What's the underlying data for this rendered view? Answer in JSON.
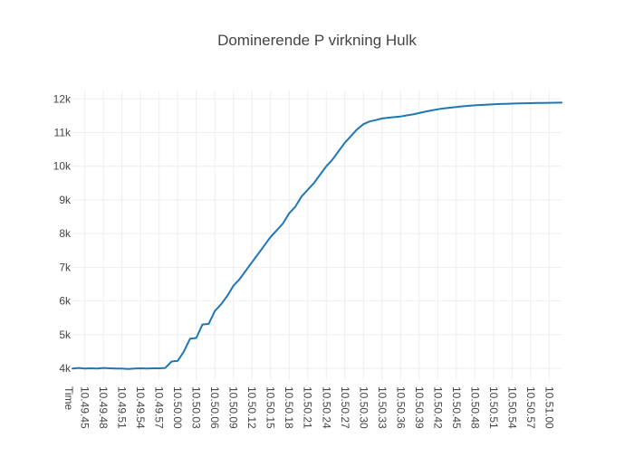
{
  "chart_data": {
    "type": "line",
    "title": "Dominerende P virkning Hulk",
    "xlabel": "Time",
    "ylabel": "",
    "grid": true,
    "legend": "none",
    "xlim": [
      "10.49.43",
      "10.51.02"
    ],
    "ylim": [
      3650,
      12250
    ],
    "x_ticks": [
      "10.49.45",
      "10.49.48",
      "10.49.51",
      "10.49.54",
      "10.49.57",
      "10.50.00",
      "10.50.03",
      "10.50.06",
      "10.50.09",
      "10.50.12",
      "10.50.15",
      "10.50.18",
      "10.50.21",
      "10.50.24",
      "10.50.27",
      "10.50.30",
      "10.50.33",
      "10.50.36",
      "10.50.39",
      "10.50.42",
      "10.50.45",
      "10.50.48",
      "10.50.51",
      "10.50.54",
      "10.50.57",
      "10.51.00"
    ],
    "y_ticks": [
      {
        "value": 4000,
        "label": "4k"
      },
      {
        "value": 5000,
        "label": "5k"
      },
      {
        "value": 6000,
        "label": "6k"
      },
      {
        "value": 7000,
        "label": "7k"
      },
      {
        "value": 8000,
        "label": "8k"
      },
      {
        "value": 9000,
        "label": "9k"
      },
      {
        "value": 10000,
        "label": "10k"
      },
      {
        "value": 11000,
        "label": "11k"
      },
      {
        "value": 12000,
        "label": "12k"
      }
    ],
    "series": [
      {
        "color": "#1f77b4",
        "points": [
          [
            "10.49.43",
            3990
          ],
          [
            "10.49.44",
            4010
          ],
          [
            "10.49.45",
            3990
          ],
          [
            "10.49.46",
            4000
          ],
          [
            "10.49.47",
            3990
          ],
          [
            "10.49.48",
            4010
          ],
          [
            "10.49.49",
            4000
          ],
          [
            "10.49.50",
            3990
          ],
          [
            "10.49.51",
            3990
          ],
          [
            "10.49.52",
            3980
          ],
          [
            "10.49.53",
            3990
          ],
          [
            "10.49.54",
            4000
          ],
          [
            "10.49.55",
            3990
          ],
          [
            "10.49.56",
            4000
          ],
          [
            "10.49.57",
            4000
          ],
          [
            "10.49.58",
            4010
          ],
          [
            "10.49.59",
            4200
          ],
          [
            "10.50.00",
            4220
          ],
          [
            "10.50.01",
            4500
          ],
          [
            "10.50.02",
            4880
          ],
          [
            "10.50.03",
            4900
          ],
          [
            "10.50.04",
            5300
          ],
          [
            "10.50.05",
            5320
          ],
          [
            "10.50.06",
            5700
          ],
          [
            "10.50.07",
            5900
          ],
          [
            "10.50.08",
            6150
          ],
          [
            "10.50.09",
            6450
          ],
          [
            "10.50.10",
            6650
          ],
          [
            "10.50.11",
            6900
          ],
          [
            "10.50.12",
            7150
          ],
          [
            "10.50.13",
            7400
          ],
          [
            "10.50.14",
            7650
          ],
          [
            "10.50.15",
            7900
          ],
          [
            "10.50.16",
            8100
          ],
          [
            "10.50.17",
            8300
          ],
          [
            "10.50.18",
            8600
          ],
          [
            "10.50.19",
            8800
          ],
          [
            "10.50.20",
            9100
          ],
          [
            "10.50.21",
            9300
          ],
          [
            "10.50.22",
            9500
          ],
          [
            "10.50.23",
            9750
          ],
          [
            "10.50.24",
            10000
          ],
          [
            "10.50.25",
            10200
          ],
          [
            "10.50.26",
            10450
          ],
          [
            "10.50.27",
            10700
          ],
          [
            "10.50.28",
            10900
          ],
          [
            "10.50.29",
            11100
          ],
          [
            "10.50.30",
            11250
          ],
          [
            "10.50.31",
            11330
          ],
          [
            "10.50.32",
            11370
          ],
          [
            "10.50.33",
            11420
          ],
          [
            "10.50.34",
            11440
          ],
          [
            "10.50.35",
            11460
          ],
          [
            "10.50.36",
            11480
          ],
          [
            "10.50.37",
            11510
          ],
          [
            "10.50.38",
            11540
          ],
          [
            "10.50.39",
            11580
          ],
          [
            "10.50.40",
            11620
          ],
          [
            "10.50.41",
            11660
          ],
          [
            "10.50.42",
            11690
          ],
          [
            "10.50.43",
            11720
          ],
          [
            "10.50.44",
            11740
          ],
          [
            "10.50.45",
            11760
          ],
          [
            "10.50.46",
            11780
          ],
          [
            "10.50.47",
            11795
          ],
          [
            "10.50.48",
            11810
          ],
          [
            "10.50.49",
            11820
          ],
          [
            "10.50.50",
            11830
          ],
          [
            "10.50.51",
            11840
          ],
          [
            "10.50.52",
            11850
          ],
          [
            "10.50.53",
            11855
          ],
          [
            "10.50.54",
            11860
          ],
          [
            "10.50.55",
            11865
          ],
          [
            "10.50.56",
            11870
          ],
          [
            "10.50.57",
            11875
          ],
          [
            "10.50.58",
            11880
          ],
          [
            "10.50.59",
            11882
          ],
          [
            "10.51.00",
            11885
          ],
          [
            "10.51.01",
            11888
          ],
          [
            "10.51.02",
            11890
          ]
        ]
      }
    ]
  }
}
